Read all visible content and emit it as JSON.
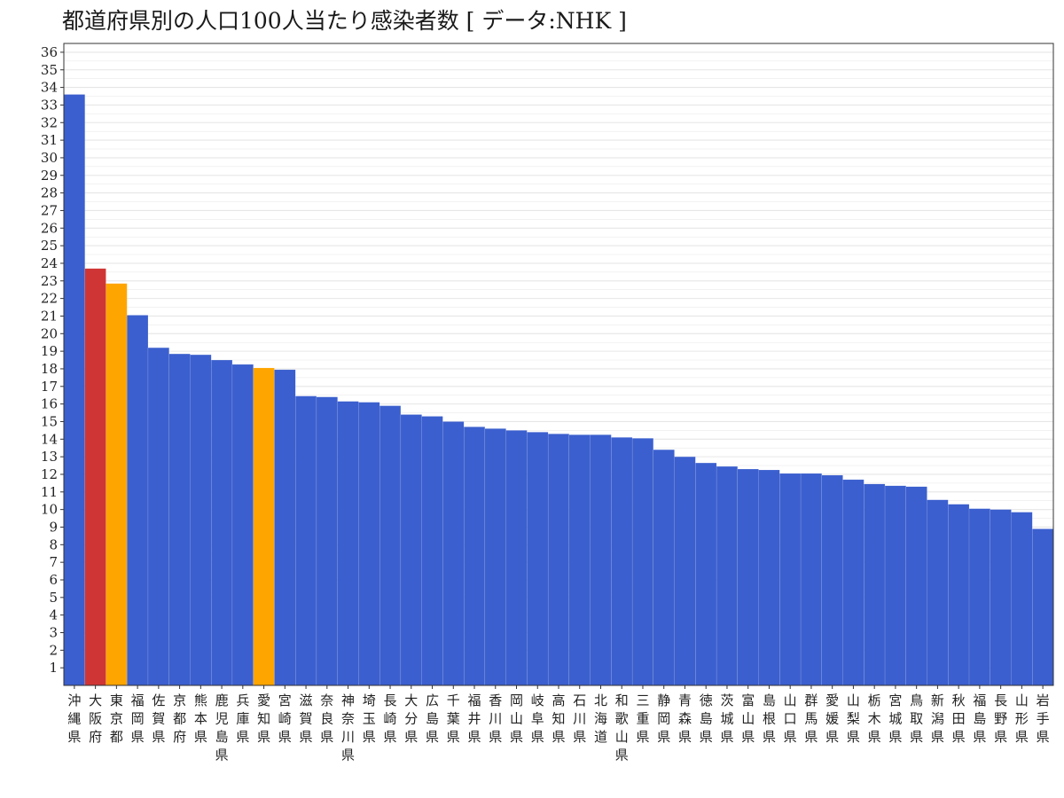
{
  "chart_data": {
    "type": "bar",
    "title": "都道府県別の人口100人当たり感染者数 [ データ:NHK ]",
    "xlabel": "",
    "ylabel": "",
    "ylim": [
      0,
      36.5
    ],
    "yticks": [
      1,
      2,
      3,
      4,
      5,
      6,
      7,
      8,
      9,
      10,
      11,
      12,
      13,
      14,
      15,
      16,
      17,
      18,
      19,
      20,
      21,
      22,
      23,
      24,
      25,
      26,
      27,
      28,
      29,
      30,
      31,
      32,
      33,
      34,
      35,
      36
    ],
    "grid": true,
    "legend": "none",
    "colors": {
      "default": "#3b5fce",
      "highlight_red": "#cf3535",
      "highlight_orange": "#ffa500",
      "grid": "#e6e6e6",
      "frame": "#333333"
    },
    "categories": [
      "沖縄県",
      "大阪府",
      "東京都",
      "福岡県",
      "佐賀県",
      "京都府",
      "熊本県",
      "鹿児島県",
      "兵庫県",
      "愛知県",
      "宮崎県",
      "滋賀県",
      "奈良県",
      "神奈川県",
      "埼玉県",
      "長崎県",
      "大分県",
      "広島県",
      "千葉県",
      "福井県",
      "香川県",
      "岡山県",
      "岐阜県",
      "高知県",
      "石川県",
      "北海道",
      "和歌山県",
      "三重県",
      "静岡県",
      "青森県",
      "徳島県",
      "茨城県",
      "富山県",
      "島根県",
      "山口県",
      "群馬県",
      "愛媛県",
      "山梨県",
      "栃木県",
      "宮城県",
      "鳥取県",
      "新潟県",
      "秋田県",
      "福島県",
      "長野県",
      "山形県",
      "岩手県"
    ],
    "values": [
      33.6,
      23.7,
      22.85,
      21.05,
      19.2,
      18.85,
      18.8,
      18.5,
      18.25,
      18.05,
      17.95,
      16.45,
      16.4,
      16.15,
      16.1,
      15.9,
      15.4,
      15.3,
      15.0,
      14.7,
      14.6,
      14.5,
      14.4,
      14.3,
      14.25,
      14.25,
      14.1,
      14.05,
      13.4,
      13.0,
      12.65,
      12.45,
      12.3,
      12.25,
      12.05,
      12.05,
      11.95,
      11.7,
      11.45,
      11.35,
      11.3,
      10.55,
      10.3,
      10.05,
      10.0,
      9.85,
      8.9
    ],
    "bar_colors": [
      "#3b5fce",
      "#cf3535",
      "#ffa500",
      "#3b5fce",
      "#3b5fce",
      "#3b5fce",
      "#3b5fce",
      "#3b5fce",
      "#3b5fce",
      "#ffa500",
      "#3b5fce",
      "#3b5fce",
      "#3b5fce",
      "#3b5fce",
      "#3b5fce",
      "#3b5fce",
      "#3b5fce",
      "#3b5fce",
      "#3b5fce",
      "#3b5fce",
      "#3b5fce",
      "#3b5fce",
      "#3b5fce",
      "#3b5fce",
      "#3b5fce",
      "#3b5fce",
      "#3b5fce",
      "#3b5fce",
      "#3b5fce",
      "#3b5fce",
      "#3b5fce",
      "#3b5fce",
      "#3b5fce",
      "#3b5fce",
      "#3b5fce",
      "#3b5fce",
      "#3b5fce",
      "#3b5fce",
      "#3b5fce",
      "#3b5fce",
      "#3b5fce",
      "#3b5fce",
      "#3b5fce",
      "#3b5fce",
      "#3b5fce",
      "#3b5fce",
      "#3b5fce"
    ]
  }
}
